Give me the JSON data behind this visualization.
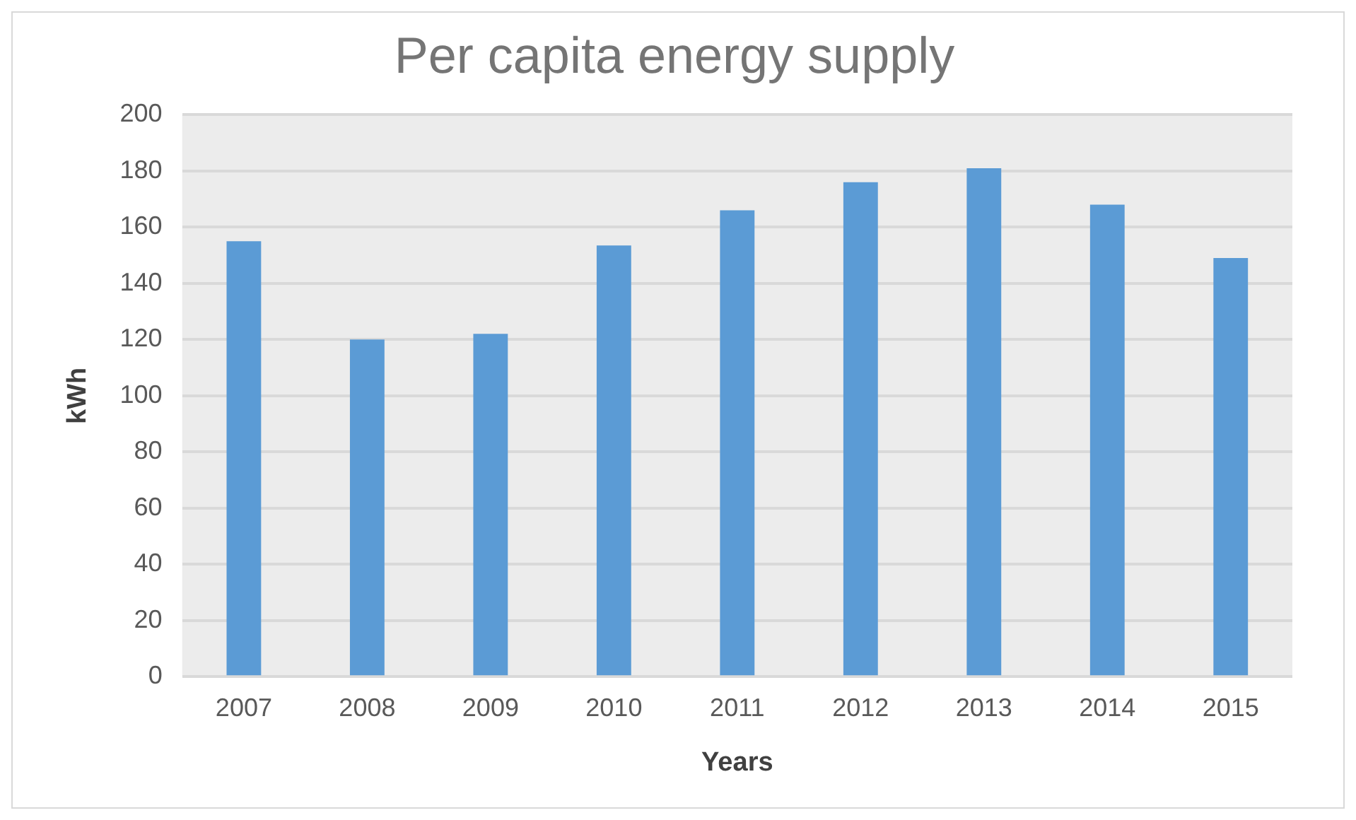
{
  "chart_data": {
    "type": "bar",
    "title": "Per capita energy supply",
    "xlabel": "Years",
    "ylabel": "kWh",
    "categories": [
      "2007",
      "2008",
      "2009",
      "2010",
      "2011",
      "2012",
      "2013",
      "2014",
      "2015"
    ],
    "values": [
      155,
      120,
      122,
      153.5,
      166,
      176,
      181,
      168,
      149
    ],
    "color": "#5b9bd5",
    "ylim": [
      0,
      200
    ],
    "yticks": [
      0,
      20,
      40,
      60,
      80,
      100,
      120,
      140,
      160,
      180,
      200
    ],
    "grid": "y"
  }
}
